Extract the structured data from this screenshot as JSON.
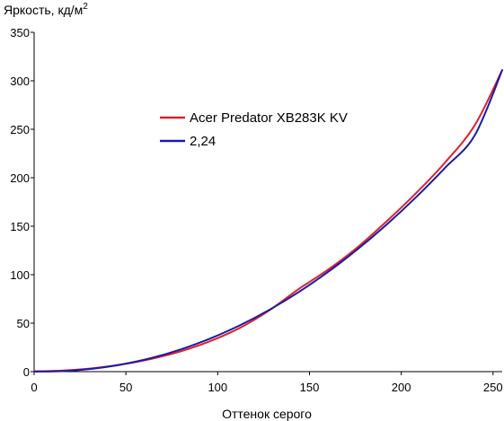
{
  "chart_data": {
    "type": "line",
    "ylabel": "Яркость, кд/м",
    "ylabel_sup": "2",
    "xlabel": "Оттенок серого",
    "xlim": [
      0,
      255
    ],
    "ylim": [
      0,
      350
    ],
    "xticks": [
      0,
      50,
      100,
      150,
      200,
      250
    ],
    "yticks": [
      0,
      50,
      100,
      150,
      200,
      250,
      300,
      350
    ],
    "grid": false,
    "legend_position": "center-left",
    "series": [
      {
        "name": "Acer Predator XB283K KV",
        "color": "#e0202a",
        "x": [
          0,
          16,
          32,
          48,
          64,
          80,
          96,
          112,
          128,
          144,
          160,
          176,
          192,
          208,
          224,
          240,
          255
        ],
        "y": [
          0.3,
          1.2,
          3.5,
          7.5,
          13.2,
          21.0,
          31.5,
          45.0,
          63.0,
          85.0,
          105.0,
          128.0,
          155.0,
          184.0,
          216.0,
          254.0,
          311.0
        ]
      },
      {
        "name": "2,24",
        "color": "#1a1aa8",
        "x": [
          0,
          16,
          32,
          48,
          64,
          80,
          96,
          112,
          128,
          144,
          160,
          176,
          192,
          208,
          224,
          240,
          255
        ],
        "y": [
          0.0,
          0.6,
          3.0,
          7.5,
          14.1,
          23.0,
          34.2,
          47.7,
          63.6,
          81.9,
          102.7,
          125.9,
          151.6,
          179.8,
          210.5,
          243.6,
          311.0
        ]
      }
    ]
  }
}
